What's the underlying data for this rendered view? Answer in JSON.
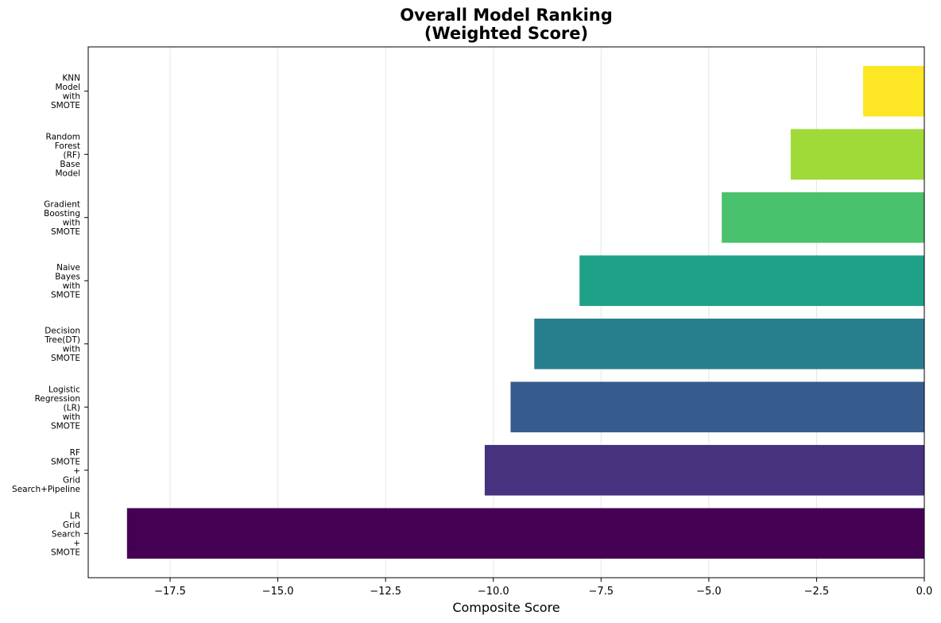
{
  "chart_data": {
    "type": "bar",
    "orientation": "horizontal",
    "title": [
      "Overall Model Ranking",
      "(Weighted Score)"
    ],
    "xlabel": "Composite Score",
    "ylabel": "",
    "xlim": [
      -19.4,
      0
    ],
    "xticks": [
      -17.5,
      -15.0,
      -12.5,
      -10.0,
      -7.5,
      -5.0,
      -2.5,
      0.0
    ],
    "xtick_labels": [
      "−17.5",
      "−15.0",
      "−12.5",
      "−10.0",
      "−7.5",
      "−5.0",
      "−2.5",
      "0.0"
    ],
    "grid": "x",
    "categories": [
      [
        "KNN",
        "Model",
        "with",
        "SMOTE"
      ],
      [
        "Random",
        "Forest",
        "(RF)",
        "Base",
        "Model"
      ],
      [
        "Gradient",
        "Boosting",
        "with",
        "SMOTE"
      ],
      [
        "Naive",
        "Bayes",
        "with",
        "SMOTE"
      ],
      [
        "Decision",
        "Tree(DT)",
        "with",
        "SMOTE"
      ],
      [
        "Logistic",
        "Regression",
        "(LR)",
        "with",
        "SMOTE"
      ],
      [
        "RF",
        "SMOTE",
        "+",
        "Grid",
        "Search+Pipeline"
      ],
      [
        "LR",
        "Grid",
        "Search",
        "+",
        "SMOTE"
      ]
    ],
    "values": [
      -1.42,
      -3.1,
      -4.7,
      -8.0,
      -9.05,
      -9.6,
      -10.2,
      -18.5
    ],
    "colors": [
      "#fde725",
      "#a0da39",
      "#4ac16d",
      "#1fa187",
      "#277f8e",
      "#365c8d",
      "#46327e",
      "#440154"
    ]
  }
}
